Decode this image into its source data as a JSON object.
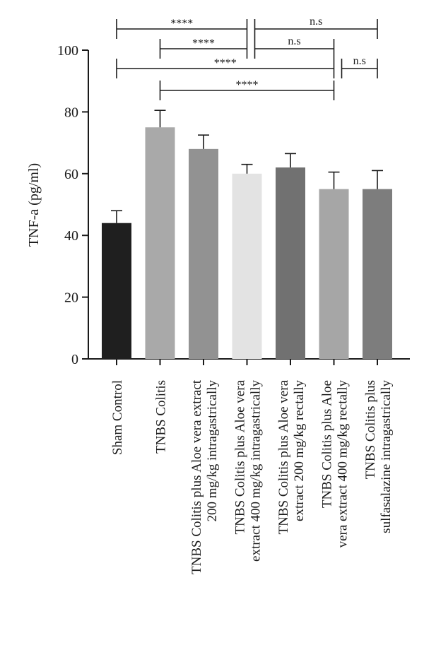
{
  "chart_data": {
    "type": "bar",
    "ylabel": "TNF-a (pg/ml)",
    "ylim": [
      0,
      100
    ],
    "yticks": [
      0,
      20,
      40,
      60,
      80,
      100
    ],
    "grid": false,
    "categories": [
      [
        "Sham Control"
      ],
      [
        "TNBS Colitis"
      ],
      [
        "TNBS Colitis plus Aloe vera extract",
        "200 mg/kg intragastrically"
      ],
      [
        "TNBS Colitis plus Aloe vera",
        "extract 400 mg/kg intragastrically"
      ],
      [
        "TNBS Colitis plus Aloe vera",
        "extract 200 mg/kg rectally"
      ],
      [
        "TNBS Colitis plus Aloe",
        "vera extract 400 mg/kg rectally"
      ],
      [
        "TNBS Colitis plus",
        "sulfasalazine intragastrically"
      ]
    ],
    "values": [
      44,
      75,
      68,
      60,
      62,
      55,
      55
    ],
    "errors": [
      4,
      5.5,
      4.5,
      3,
      4.5,
      5.5,
      6
    ],
    "colors": [
      "#1f1f1f",
      "#a9a9a9",
      "#929292",
      "#e3e3e3",
      "#717171",
      "#a6a6a6",
      "#7d7d7d"
    ],
    "comparisons": [
      {
        "from": 0,
        "to": 3,
        "label": "****",
        "tier": 0
      },
      {
        "from": 3,
        "to": 6,
        "label": "n.s",
        "tier": 0
      },
      {
        "from": 1,
        "to": 3,
        "label": "****",
        "tier": 1
      },
      {
        "from": 3,
        "to": 5,
        "label": "n.s",
        "tier": 1
      },
      {
        "from": 0,
        "to": 5,
        "label": "****",
        "tier": 2
      },
      {
        "from": 5,
        "to": 6,
        "label": "n.s",
        "tier": 2
      },
      {
        "from": 1,
        "to": 5,
        "label": "****",
        "tier": 3
      }
    ]
  }
}
